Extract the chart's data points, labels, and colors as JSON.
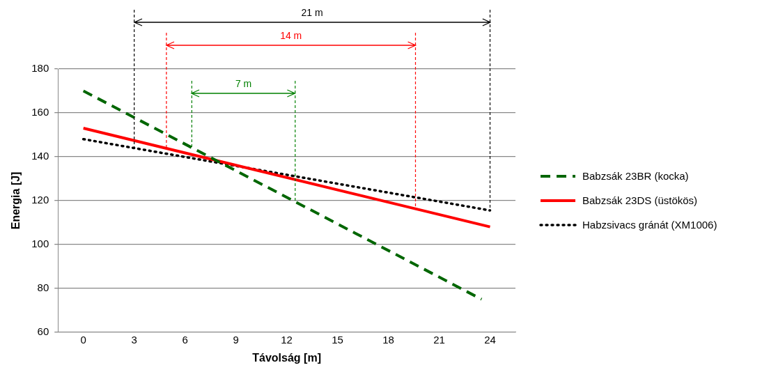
{
  "chart_data": {
    "type": "line",
    "xlabel": "Távolság [m]",
    "ylabel": "Energia [J]",
    "xlim": [
      -1.5,
      25.5
    ],
    "xticks": [
      0,
      3,
      6,
      9,
      12,
      15,
      18,
      21,
      24
    ],
    "ylim": [
      60,
      180
    ],
    "yticks": [
      60,
      80,
      100,
      120,
      140,
      160,
      180
    ],
    "grid": "y",
    "legend": "right",
    "marker": "none",
    "series": [
      {
        "name": "Babzsák 23BR (kocka)",
        "color": "#006600",
        "line_style": "dashed",
        "x": [
          0,
          23.5
        ],
        "values": [
          170,
          75
        ]
      },
      {
        "name": "Babzsák 23DS (üstökös)",
        "color": "#ff0000",
        "line_style": "solid",
        "x": [
          0,
          24
        ],
        "values": [
          153,
          108
        ]
      },
      {
        "name": "Habzsivacs gránát (XM1006)",
        "color": "#000000",
        "line_style": "dotted",
        "x": [
          0,
          24
        ],
        "values": [
          148,
          115.5
        ]
      }
    ],
    "ref_lines": [
      {
        "axis": "x",
        "value": 3,
        "color": "#000000",
        "line_style": "dashed"
      },
      {
        "axis": "x",
        "value": 24,
        "color": "#000000",
        "line_style": "dashed"
      },
      {
        "axis": "x",
        "value": 4.9,
        "color": "#ff0000",
        "line_style": "dashed"
      },
      {
        "axis": "x",
        "value": 19.6,
        "color": "#ff0000",
        "line_style": "dashed"
      },
      {
        "axis": "x",
        "value": 6.4,
        "color": "#008000",
        "line_style": "dashed"
      },
      {
        "axis": "x",
        "value": 12.5,
        "color": "#008000",
        "line_style": "dashed"
      }
    ],
    "annotations": [
      "21 m",
      "14 m",
      "7 m"
    ]
  }
}
